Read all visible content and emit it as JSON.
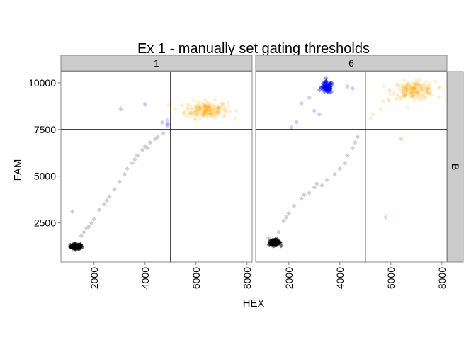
{
  "chart_data": {
    "type": "scatter",
    "title": "Ex 1 - manually set gating thresholds",
    "xlabel": "HEX",
    "ylabel": "FAM",
    "xlim": [
      700,
      8200
    ],
    "ylim": [
      400,
      10600
    ],
    "x_ticks": [
      {
        "value": 2000,
        "label": "2000"
      },
      {
        "value": 4000,
        "label": "4000"
      },
      {
        "value": 6000,
        "label": "6000"
      },
      {
        "value": 8000,
        "label": "8000"
      }
    ],
    "y_ticks": [
      {
        "value": 2500,
        "label": "2500"
      },
      {
        "value": 5000,
        "label": "5000"
      },
      {
        "value": 7500,
        "label": "7500"
      },
      {
        "value": 10000,
        "label": "10000"
      }
    ],
    "grid": false,
    "thresholds": {
      "x": 5000,
      "y": 7500
    },
    "row_strip": "B",
    "colors": {
      "empty": "#000000",
      "fam_positive": "#0000ff",
      "hex_positive": "#00cc00",
      "double_positive": "#ffa500",
      "strip_fill": "#cccccc",
      "panel_border": "#888888"
    },
    "panels": [
      {
        "strip": "1",
        "clusters": [
          {
            "group": "empty",
            "cx": 1300,
            "cy": 1230,
            "sx": 110,
            "sy": 65,
            "n": 90,
            "opacity": 0.55
          },
          {
            "group": "double_positive",
            "cx": 6400,
            "cy": 8550,
            "sx": 420,
            "sy": 230,
            "n": 170,
            "opacity": 0.16
          },
          {
            "group": "fam_positive",
            "cx": 4800,
            "cy": 7700,
            "sx": 80,
            "sy": 120,
            "n": 6,
            "opacity": 0.18
          }
        ],
        "points": [
          {
            "group": "empty",
            "x": 1150,
            "y": 3100
          },
          {
            "group": "empty",
            "x": 1500,
            "y": 1800
          },
          {
            "group": "empty",
            "x": 1600,
            "y": 2000
          },
          {
            "group": "empty",
            "x": 1700,
            "y": 2200
          },
          {
            "group": "empty",
            "x": 1900,
            "y": 2500
          },
          {
            "group": "empty",
            "x": 2000,
            "y": 2700
          },
          {
            "group": "empty",
            "x": 2200,
            "y": 3200
          },
          {
            "group": "empty",
            "x": 2400,
            "y": 3500
          },
          {
            "group": "empty",
            "x": 2600,
            "y": 3900
          },
          {
            "group": "empty",
            "x": 2800,
            "y": 4300
          },
          {
            "group": "empty",
            "x": 3000,
            "y": 4700
          },
          {
            "group": "empty",
            "x": 3200,
            "y": 5100
          },
          {
            "group": "empty",
            "x": 3300,
            "y": 5400
          },
          {
            "group": "empty",
            "x": 3500,
            "y": 5700
          },
          {
            "group": "empty",
            "x": 3700,
            "y": 6100
          },
          {
            "group": "empty",
            "x": 3900,
            "y": 6400
          },
          {
            "group": "empty",
            "x": 4000,
            "y": 6600
          },
          {
            "group": "empty",
            "x": 4200,
            "y": 6800
          },
          {
            "group": "empty",
            "x": 4400,
            "y": 7000
          },
          {
            "group": "empty",
            "x": 4500,
            "y": 7100
          },
          {
            "group": "empty",
            "x": 4100,
            "y": 6500
          },
          {
            "group": "empty",
            "x": 3600,
            "y": 5900
          },
          {
            "group": "empty",
            "x": 2500,
            "y": 3700
          },
          {
            "group": "empty",
            "x": 1800,
            "y": 2300
          },
          {
            "group": "fam_positive",
            "x": 3050,
            "y": 8600
          },
          {
            "group": "fam_positive",
            "x": 4000,
            "y": 8850
          }
        ]
      },
      {
        "strip": "6",
        "clusters": [
          {
            "group": "empty",
            "cx": 1450,
            "cy": 1450,
            "sx": 110,
            "sy": 70,
            "n": 90,
            "opacity": 0.55
          },
          {
            "group": "fam_positive",
            "cx": 3500,
            "cy": 9750,
            "sx": 110,
            "sy": 150,
            "n": 70,
            "opacity": 0.4
          },
          {
            "group": "double_positive",
            "cx": 6900,
            "cy": 9600,
            "sx": 420,
            "sy": 230,
            "n": 160,
            "opacity": 0.16
          }
        ],
        "points": [
          {
            "group": "empty",
            "x": 1200,
            "y": 1700
          },
          {
            "group": "empty",
            "x": 1600,
            "y": 2000
          },
          {
            "group": "empty",
            "x": 1800,
            "y": 2600
          },
          {
            "group": "empty",
            "x": 2000,
            "y": 3000
          },
          {
            "group": "empty",
            "x": 2200,
            "y": 3400
          },
          {
            "group": "empty",
            "x": 2500,
            "y": 3800
          },
          {
            "group": "empty",
            "x": 2800,
            "y": 4100
          },
          {
            "group": "empty",
            "x": 3000,
            "y": 4400
          },
          {
            "group": "empty",
            "x": 3300,
            "y": 4500
          },
          {
            "group": "empty",
            "x": 3500,
            "y": 4800
          },
          {
            "group": "empty",
            "x": 3800,
            "y": 5100
          },
          {
            "group": "empty",
            "x": 4000,
            "y": 5400
          },
          {
            "group": "empty",
            "x": 4200,
            "y": 5700
          },
          {
            "group": "empty",
            "x": 4300,
            "y": 6100
          },
          {
            "group": "empty",
            "x": 4500,
            "y": 6500
          },
          {
            "group": "empty",
            "x": 4600,
            "y": 6800
          },
          {
            "group": "empty",
            "x": 4700,
            "y": 7100
          },
          {
            "group": "empty",
            "x": 2600,
            "y": 4000
          },
          {
            "group": "empty",
            "x": 3100,
            "y": 4600
          },
          {
            "group": "empty",
            "x": 1900,
            "y": 2800
          },
          {
            "group": "fam_positive",
            "x": 2500,
            "y": 8900
          },
          {
            "group": "fam_positive",
            "x": 2800,
            "y": 9200
          },
          {
            "group": "fam_positive",
            "x": 3000,
            "y": 8500
          },
          {
            "group": "fam_positive",
            "x": 2300,
            "y": 7900
          },
          {
            "group": "fam_positive",
            "x": 3200,
            "y": 8300
          },
          {
            "group": "fam_positive",
            "x": 2100,
            "y": 7600
          },
          {
            "group": "fam_positive",
            "x": 4300,
            "y": 9800
          },
          {
            "group": "fam_positive",
            "x": 4500,
            "y": 9700
          },
          {
            "group": "hex_positive",
            "x": 6400,
            "y": 7000
          },
          {
            "group": "hex_positive",
            "x": 5800,
            "y": 2800
          },
          {
            "group": "double_positive",
            "x": 5300,
            "y": 8300
          },
          {
            "group": "double_positive",
            "x": 5600,
            "y": 8600
          },
          {
            "group": "double_positive",
            "x": 5200,
            "y": 8100
          },
          {
            "group": "double_positive",
            "x": 5700,
            "y": 9000
          },
          {
            "group": "double_positive",
            "x": 5900,
            "y": 9100
          }
        ]
      }
    ]
  }
}
